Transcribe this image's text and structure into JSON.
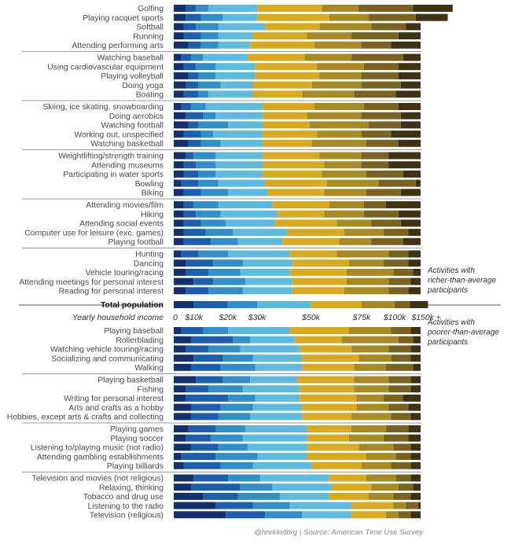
{
  "chart_data": {
    "type": "bar",
    "stacked": "horizontal-100pct",
    "income_brackets": [
      "0",
      "$10k",
      "$20k",
      "$30k",
      "$50k",
      "$75k",
      "$100k",
      "$150k +"
    ],
    "colors": [
      "#14306e",
      "#1b5fae",
      "#2f8fc6",
      "#5dbbe0",
      "#d9a91f",
      "#a88a25",
      "#7a6321",
      "#3e3214"
    ],
    "axis_label": "Yearly household income",
    "total": {
      "label": "Total population",
      "values": [
        0.082,
        0.137,
        0.119,
        0.218,
        0.205,
        0.134,
        0.062,
        0.073
      ]
    },
    "richer_note": "Activities with richer-than-average participants",
    "poorer_note": "Activities with poorer-than-average participants",
    "source": "@hnrklndbrg | Source: American Time Use Survey",
    "groups": [
      {
        "rows": [
          {
            "label": "Golfing",
            "values": [
              0.05,
              0.04,
              0.05,
              0.2,
              0.26,
              0.15,
              0.22,
              0.16
            ]
          },
          {
            "label": "Playing racquet sports",
            "values": [
              0.05,
              0.06,
              0.09,
              0.14,
              0.29,
              0.16,
              0.19,
              0.13
            ]
          },
          {
            "label": "Softball",
            "values": [
              0.04,
              0.05,
              0.09,
              0.19,
              0.22,
              0.21,
              0.14,
              0.06
            ]
          },
          {
            "label": "Running",
            "values": [
              0.04,
              0.07,
              0.07,
              0.14,
              0.22,
              0.18,
              0.19,
              0.09
            ]
          },
          {
            "label": "Attending performing arts",
            "values": [
              0.06,
              0.05,
              0.07,
              0.13,
              0.26,
              0.19,
              0.12,
              0.12
            ]
          }
        ]
      },
      {
        "rows": [
          {
            "label": "Watching baseball",
            "values": [
              0.03,
              0.04,
              0.05,
              0.18,
              0.23,
              0.19,
              0.21,
              0.07
            ]
          },
          {
            "label": "Using cardiovascular equipment",
            "values": [
              0.04,
              0.05,
              0.08,
              0.16,
              0.25,
              0.19,
              0.14,
              0.09
            ]
          },
          {
            "label": "Playing volleyball",
            "values": [
              0.06,
              0.04,
              0.07,
              0.16,
              0.26,
              0.17,
              0.15,
              0.09
            ]
          },
          {
            "label": "Doing yoga",
            "values": [
              0.05,
              0.05,
              0.09,
              0.13,
              0.24,
              0.2,
              0.16,
              0.08
            ]
          },
          {
            "label": "Boating",
            "values": [
              0.04,
              0.06,
              0.04,
              0.18,
              0.2,
              0.21,
              0.17,
              0.1
            ]
          }
        ]
      },
      {
        "rows": [
          {
            "label": "Skiing, ice skating, snowboarding",
            "values": [
              0.03,
              0.04,
              0.06,
              0.23,
              0.21,
              0.2,
              0.14,
              0.09
            ]
          },
          {
            "label": "Doing aerobics",
            "values": [
              0.05,
              0.07,
              0.05,
              0.19,
              0.18,
              0.22,
              0.16,
              0.08
            ]
          },
          {
            "label": "Watching football",
            "values": [
              0.06,
              0.04,
              0.12,
              0.14,
              0.19,
              0.24,
              0.13,
              0.08
            ]
          },
          {
            "label": "Working out, unspecified",
            "values": [
              0.04,
              0.07,
              0.05,
              0.2,
              0.22,
              0.18,
              0.12,
              0.12
            ]
          },
          {
            "label": "Watching basketball",
            "values": [
              0.06,
              0.05,
              0.08,
              0.17,
              0.2,
              0.22,
              0.13,
              0.09
            ]
          }
        ]
      },
      {
        "rows": [
          {
            "label": "Weightlifting/strength training",
            "values": [
              0.05,
              0.03,
              0.09,
              0.19,
              0.23,
              0.17,
              0.11,
              0.13
            ]
          },
          {
            "label": "Attending museums",
            "values": [
              0.04,
              0.05,
              0.08,
              0.19,
              0.25,
              0.15,
              0.11,
              0.13
            ]
          },
          {
            "label": "Participating in water sports",
            "values": [
              0.04,
              0.06,
              0.07,
              0.19,
              0.24,
              0.18,
              0.15,
              0.07
            ]
          },
          {
            "label": "Bowling",
            "values": [
              0.03,
              0.07,
              0.08,
              0.19,
              0.25,
              0.21,
              0.15,
              0.02
            ]
          },
          {
            "label": "Biking",
            "values": [
              0.04,
              0.07,
              0.11,
              0.16,
              0.23,
              0.17,
              0.14,
              0.08
            ]
          }
        ]
      },
      {
        "rows": [
          {
            "label": "Attending movies/film",
            "values": [
              0.04,
              0.04,
              0.1,
              0.22,
              0.23,
              0.14,
              0.09,
              0.14
            ]
          },
          {
            "label": "Hiking",
            "values": [
              0.04,
              0.05,
              0.1,
              0.23,
              0.19,
              0.16,
              0.14,
              0.09
            ]
          },
          {
            "label": "Attending social events",
            "values": [
              0.04,
              0.07,
              0.1,
              0.2,
              0.25,
              0.14,
              0.12,
              0.08
            ]
          },
          {
            "label": "Computer use for leisure (exc. games)",
            "values": [
              0.04,
              0.09,
              0.11,
              0.22,
              0.23,
              0.16,
              0.1,
              0.05
            ]
          },
          {
            "label": "Playing football",
            "values": [
              0.04,
              0.11,
              0.11,
              0.18,
              0.23,
              0.13,
              0.13,
              0.07
            ]
          }
        ]
      },
      {
        "rows": [
          {
            "label": "Hunting",
            "values": [
              0.03,
              0.07,
              0.12,
              0.25,
              0.19,
              0.21,
              0.08,
              0.05
            ]
          },
          {
            "label": "Dancing",
            "values": [
              0.05,
              0.11,
              0.12,
              0.2,
              0.23,
              0.14,
              0.1,
              0.05
            ]
          },
          {
            "label": "Vehicle touring/racing",
            "values": [
              0.05,
              0.09,
              0.13,
              0.2,
              0.23,
              0.19,
              0.08,
              0.03
            ]
          },
          {
            "label": "Attending meetings for personal interest",
            "values": [
              0.08,
              0.08,
              0.13,
              0.19,
              0.22,
              0.17,
              0.09,
              0.04
            ]
          },
          {
            "label": "Reading for personal interest",
            "values": [
              0.05,
              0.09,
              0.14,
              0.2,
              0.21,
              0.18,
              0.08,
              0.05
            ]
          }
        ]
      },
      {
        "rows": [
          {
            "label": "Playing baseball",
            "values": [
              0.03,
              0.09,
              0.1,
              0.25,
              0.24,
              0.17,
              0.08,
              0.04
            ]
          },
          {
            "label": "Rollerblading",
            "values": [
              0.07,
              0.17,
              0.07,
              0.18,
              0.19,
              0.23,
              0.06,
              0.03
            ]
          },
          {
            "label": "Watching vehicle touring/racing",
            "values": [
              0.05,
              0.09,
              0.13,
              0.24,
              0.21,
              0.15,
              0.09,
              0.04
            ]
          },
          {
            "label": "Socializing and communicating",
            "values": [
              0.08,
              0.12,
              0.12,
              0.2,
              0.23,
              0.13,
              0.08,
              0.04
            ]
          },
          {
            "label": "Walking",
            "values": [
              0.07,
              0.12,
              0.14,
              0.19,
              0.21,
              0.13,
              0.11,
              0.03
            ]
          }
        ]
      },
      {
        "rows": [
          {
            "label": "Playing basketball",
            "values": [
              0.09,
              0.11,
              0.11,
              0.19,
              0.23,
              0.14,
              0.09,
              0.04
            ]
          },
          {
            "label": "Fishing",
            "values": [
              0.05,
              0.09,
              0.14,
              0.23,
              0.22,
              0.14,
              0.09,
              0.04
            ]
          },
          {
            "label": "Writing for personal interest",
            "values": [
              0.05,
              0.17,
              0.11,
              0.18,
              0.23,
              0.11,
              0.08,
              0.07
            ]
          },
          {
            "label": "Arts and crafts as a hobby",
            "values": [
              0.07,
              0.12,
              0.13,
              0.2,
              0.22,
              0.13,
              0.08,
              0.05
            ]
          },
          {
            "label": "Hobbies, except arts & crafts and collecting",
            "values": [
              0.07,
              0.11,
              0.13,
              0.21,
              0.2,
              0.16,
              0.08,
              0.04
            ]
          }
        ]
      },
      {
        "rows": [
          {
            "label": "Playing games",
            "values": [
              0.06,
              0.11,
              0.12,
              0.25,
              0.18,
              0.14,
              0.09,
              0.05
            ]
          },
          {
            "label": "Playing soccer",
            "values": [
              0.05,
              0.1,
              0.13,
              0.26,
              0.17,
              0.14,
              0.1,
              0.05
            ]
          },
          {
            "label": "Listening to/playing music (not radio)",
            "values": [
              0.07,
              0.11,
              0.12,
              0.24,
              0.21,
              0.14,
              0.07,
              0.04
            ]
          },
          {
            "label": "Attending gambling establishments",
            "values": [
              0.03,
              0.14,
              0.17,
              0.2,
              0.24,
              0.12,
              0.06,
              0.04
            ]
          },
          {
            "label": "Playing billiards",
            "values": [
              0.04,
              0.15,
              0.13,
              0.24,
              0.2,
              0.12,
              0.08,
              0.04
            ]
          }
        ]
      },
      {
        "rows": [
          {
            "label": "Television and movies (not religious)",
            "values": [
              0.08,
              0.14,
              0.13,
              0.28,
              0.15,
              0.12,
              0.06,
              0.04
            ]
          },
          {
            "label": "Relaxing, thinking",
            "values": [
              0.07,
              0.2,
              0.13,
              0.24,
              0.16,
              0.11,
              0.06,
              0.03
            ]
          },
          {
            "label": "Tobacco and drug use",
            "values": [
              0.12,
              0.14,
              0.17,
              0.2,
              0.16,
              0.1,
              0.07,
              0.04
            ]
          },
          {
            "label": "Listening to the radio",
            "values": [
              0.17,
              0.15,
              0.15,
              0.25,
              0.17,
              0.05,
              0.05,
              0.01
            ]
          },
          {
            "label": "Television (religious)",
            "values": [
              0.21,
              0.16,
              0.15,
              0.2,
              0.14,
              0.05,
              0.05,
              0.04
            ]
          }
        ]
      }
    ]
  }
}
